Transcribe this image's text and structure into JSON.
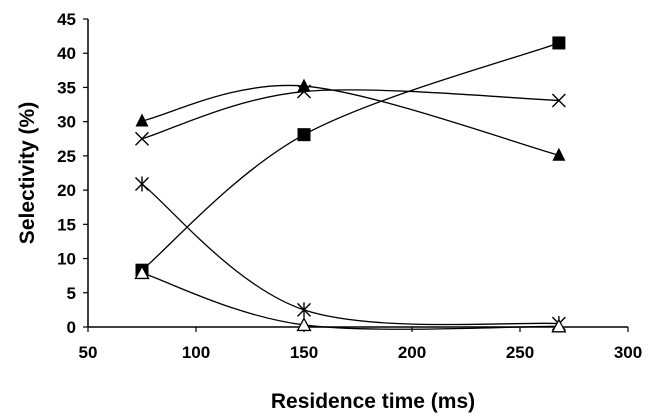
{
  "chart_data": {
    "type": "line",
    "title": "",
    "xlabel": "Residence time (ms)",
    "ylabel": "Selectivity (%)",
    "xlim": [
      50,
      300
    ],
    "ylim": [
      0,
      45
    ],
    "x_ticks": [
      50,
      100,
      150,
      200,
      250,
      300
    ],
    "y_ticks": [
      0,
      5,
      10,
      15,
      20,
      25,
      30,
      35,
      40,
      45
    ],
    "grid": false,
    "legend": "none",
    "smooth": true,
    "series": [
      {
        "marker": "filled-square",
        "x": [
          75,
          150,
          268
        ],
        "y": [
          8.3,
          28.1,
          41.5
        ]
      },
      {
        "marker": "filled-triangle",
        "x": [
          75,
          150,
          268
        ],
        "y": [
          30.1,
          35.2,
          25.1
        ]
      },
      {
        "marker": "x",
        "x": [
          75,
          150,
          268
        ],
        "y": [
          27.5,
          34.4,
          33.1
        ]
      },
      {
        "marker": "asterisk",
        "x": [
          75,
          150,
          268
        ],
        "y": [
          20.9,
          2.5,
          0.5
        ]
      },
      {
        "marker": "open-triangle",
        "x": [
          75,
          150,
          268
        ],
        "y": [
          7.9,
          0.3,
          0.1
        ]
      }
    ],
    "colors": {
      "line": "#000000",
      "marker": "#000000",
      "axis": "#000000"
    }
  }
}
